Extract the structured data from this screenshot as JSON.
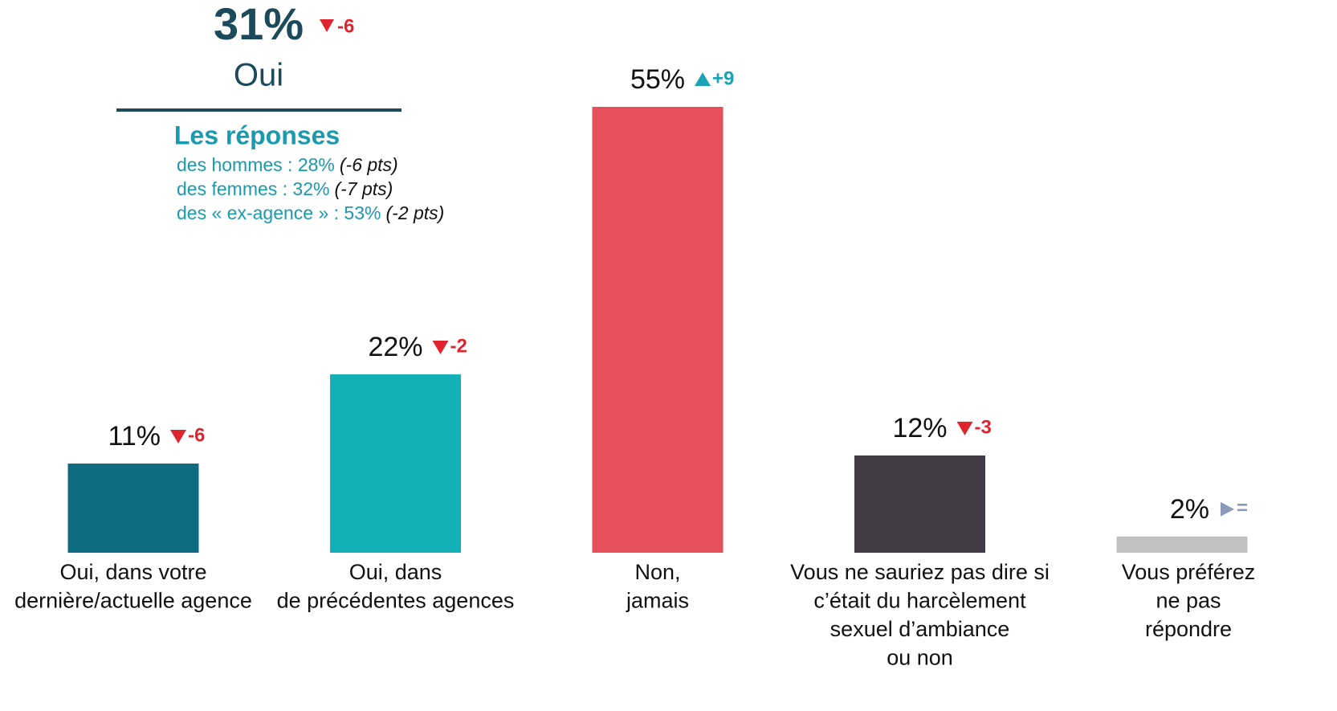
{
  "chart_data": {
    "type": "bar",
    "summary": {
      "value_label": "31%",
      "change_label": "-6",
      "label": "Oui",
      "subtitle": "Les réponses",
      "lines": [
        {
          "text": "des hommes : 28%",
          "note": "(-6 pts)"
        },
        {
          "text": "des femmes : 32%",
          "note": "(-7 pts)"
        },
        {
          "text": "des « ex-agence »  : 53%",
          "note": "(-2 pts)"
        }
      ]
    },
    "categories": [
      [
        "Oui, dans votre",
        "dernière/actuelle agence"
      ],
      [
        "Oui, dans",
        "de précédentes agences"
      ],
      [
        "Non,",
        "jamais"
      ],
      [
        "Vous ne sauriez pas dire si",
        "c’était du harcèlement",
        "sexuel d’ambiance",
        "ou non"
      ],
      [
        "Vous préférez",
        "ne pas",
        "répondre"
      ]
    ],
    "values": [
      11,
      22,
      55,
      12,
      2
    ],
    "value_labels": [
      "11%",
      "22%",
      "55%",
      "12%",
      "2%"
    ],
    "changes": [
      -6,
      -2,
      9,
      -3,
      0
    ],
    "change_labels": [
      "-6",
      "-2",
      "+9",
      "-3",
      "="
    ],
    "colors": [
      "#0f6b80",
      "#14b0b7",
      "#e5505a",
      "#413c48",
      "#c1c1c1"
    ],
    "trend_colors": {
      "down": "#e0242f",
      "up": "#1aa3b6",
      "flat": "#8b9ab7"
    },
    "ylim": [
      0,
      55
    ]
  }
}
